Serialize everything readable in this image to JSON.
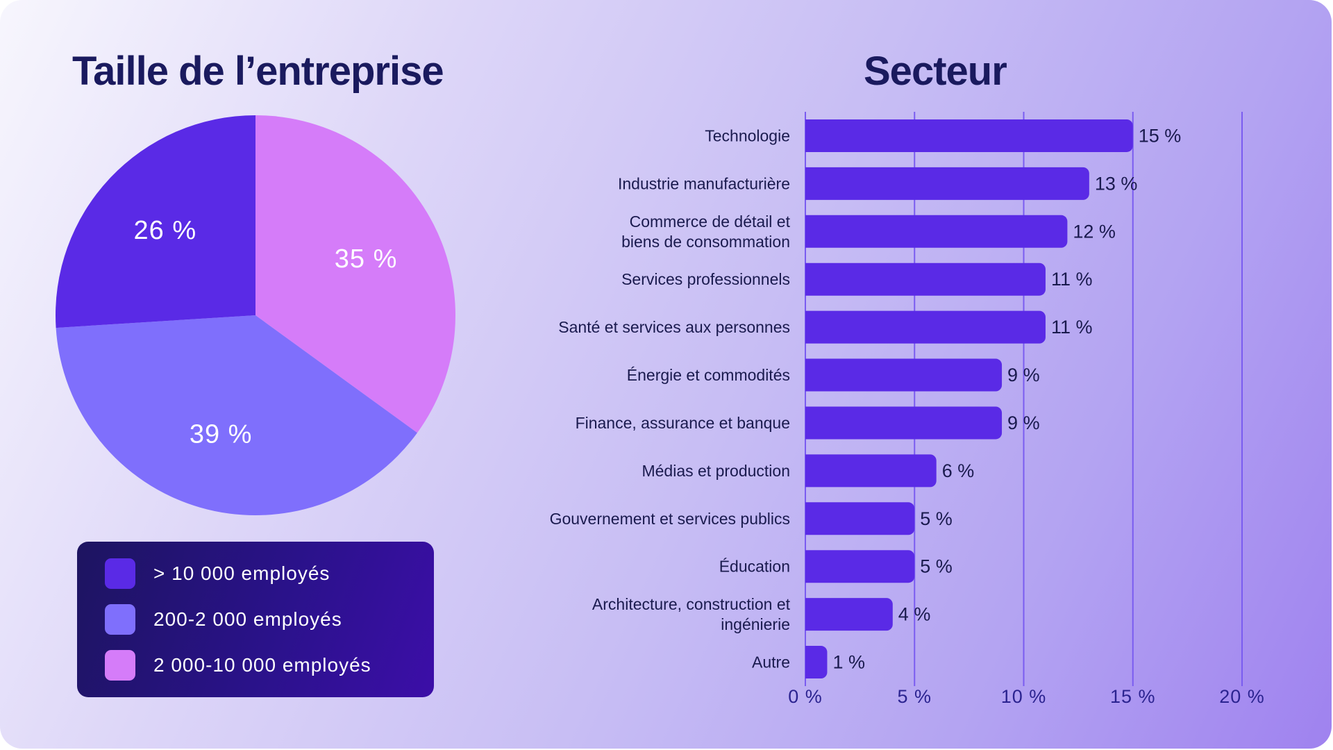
{
  "colors": {
    "title": "#1a1a5e",
    "bar": "#5a2ae6",
    "grid": "#7a5cf0",
    "legend_bg": "#22137a"
  },
  "titles": {
    "left": "Taille de l’entreprise",
    "right": "Secteur"
  },
  "chart_data": [
    {
      "type": "pie",
      "title": "Taille de l’entreprise",
      "slices": [
        {
          "name": "2 000-10 000 employés",
          "value": 35,
          "label": "35 %",
          "color": "#d57cf9"
        },
        {
          "name": "200-2 000 employés",
          "value": 39,
          "label": "39 %",
          "color": "#7f6ffc"
        },
        {
          "name": "> 10 000 employés",
          "value": 26,
          "label": "26 %",
          "color": "#5a2ae6"
        }
      ],
      "legend": {
        "placement": "bottom",
        "items": [
          {
            "label": "> 10 000 employés",
            "color": "#5a2ae6"
          },
          {
            "label": "200-2 000 employés",
            "color": "#7f6ffc"
          },
          {
            "label": "2 000-10 000 employés",
            "color": "#d57cf9"
          }
        ]
      }
    },
    {
      "type": "bar",
      "orientation": "horizontal",
      "title": "Secteur",
      "xlim": [
        0,
        20
      ],
      "grid": true,
      "ticks": [
        {
          "value": 0,
          "label": "0 %"
        },
        {
          "value": 5,
          "label": "5 %"
        },
        {
          "value": 10,
          "label": "10 %"
        },
        {
          "value": 15,
          "label": "15 %"
        },
        {
          "value": 20,
          "label": "20 %"
        }
      ],
      "categories": [
        [
          "Technologie"
        ],
        [
          "Industrie manufacturière"
        ],
        [
          "Commerce de détail et",
          "biens de consommation"
        ],
        [
          "Services professionnels"
        ],
        [
          "Santé et services aux personnes"
        ],
        [
          "Énergie et commodités"
        ],
        [
          "Finance, assurance et banque"
        ],
        [
          "Médias et production"
        ],
        [
          "Gouvernement et services publics"
        ],
        [
          "Éducation"
        ],
        [
          "Architecture, construction et",
          "ingénierie"
        ],
        [
          "Autre"
        ]
      ],
      "values": [
        15,
        13,
        12,
        11,
        11,
        9,
        9,
        6,
        5,
        5,
        4,
        1
      ],
      "value_labels": [
        "15 %",
        "13 %",
        "12 %",
        "11 %",
        "11 %",
        "9 %",
        "9 %",
        "6 %",
        "5 %",
        "5 %",
        "4 %",
        "1 %"
      ]
    }
  ]
}
